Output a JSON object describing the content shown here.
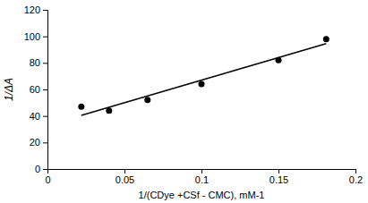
{
  "chart_data": {
    "type": "scatter",
    "x_label": "1/(CDye +CSf - CMC), mM-1",
    "y_label": "1/ΔA",
    "xlim": [
      0,
      0.2
    ],
    "xticks": [
      0,
      0.05,
      0.1,
      0.15,
      0.2
    ],
    "ylim": [
      0,
      120
    ],
    "yticks": [
      0,
      20,
      40,
      60,
      80,
      100,
      120
    ],
    "grid": false,
    "series": [
      {
        "type": "scatter",
        "marker": "circle",
        "color": "#000000",
        "x": [
          0.022,
          0.04,
          0.065,
          0.1,
          0.15,
          0.181
        ],
        "values": [
          47,
          44,
          52,
          64,
          82,
          98
        ]
      },
      {
        "type": "line",
        "line_style": "solid",
        "color": "#000000",
        "x": [
          0.022,
          0.181
        ],
        "values": [
          40.5,
          94.5
        ]
      }
    ]
  }
}
